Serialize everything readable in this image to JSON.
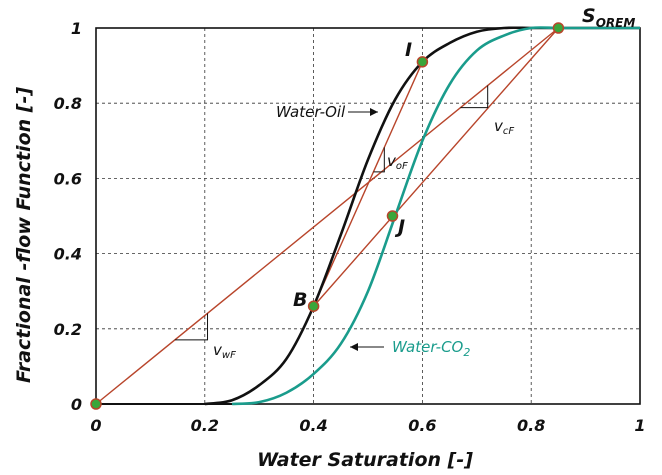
{
  "chart_data": {
    "type": "line",
    "xlabel": "Water Saturation [-]",
    "ylabel": "Fractional -flow Function [-]",
    "xlim": [
      0,
      1
    ],
    "ylim": [
      0,
      1
    ],
    "x_ticks": [
      "0",
      "0.2",
      "0.4",
      "0.6",
      "0.8",
      "1"
    ],
    "y_ticks": [
      "0",
      "0.2",
      "0.4",
      "0.6",
      "0.8",
      "1"
    ],
    "grid": true,
    "series": [
      {
        "name": "Water-Oil",
        "color": "#111111",
        "x": [
          0.2,
          0.25,
          0.3,
          0.35,
          0.4,
          0.45,
          0.5,
          0.55,
          0.6,
          0.65,
          0.7,
          0.75,
          0.8,
          0.85,
          0.9,
          0.95,
          1.0
        ],
        "y": [
          0.0,
          0.01,
          0.05,
          0.12,
          0.26,
          0.45,
          0.65,
          0.81,
          0.91,
          0.96,
          0.99,
          1.0,
          1.0,
          1.0,
          1.0,
          1.0,
          1.0
        ]
      },
      {
        "name": "Water-CO2",
        "color": "#1a9c8c",
        "x": [
          0.25,
          0.3,
          0.35,
          0.4,
          0.45,
          0.5,
          0.55,
          0.6,
          0.65,
          0.7,
          0.75,
          0.8,
          0.85,
          0.9,
          0.95,
          1.0
        ],
        "y": [
          0.0,
          0.005,
          0.03,
          0.08,
          0.16,
          0.3,
          0.5,
          0.7,
          0.85,
          0.94,
          0.98,
          1.0,
          1.0,
          1.0,
          1.0,
          1.0
        ]
      }
    ],
    "tangent_lines": [
      {
        "from": [
          0,
          0
        ],
        "to": [
          0.85,
          1.0
        ],
        "color": "#b8452b"
      },
      {
        "from": [
          0.4,
          0.26
        ],
        "to": [
          0.6,
          0.91
        ],
        "color": "#b8452b"
      },
      {
        "from": [
          0.4,
          0.26
        ],
        "to": [
          0.85,
          1.0
        ],
        "color": "#b8452b"
      }
    ],
    "points": [
      {
        "label": "",
        "x": 0.0,
        "y": 0.0
      },
      {
        "label": "B",
        "x": 0.4,
        "y": 0.26
      },
      {
        "label": "J",
        "x": 0.545,
        "y": 0.5
      },
      {
        "label": "I",
        "x": 0.6,
        "y": 0.91
      },
      {
        "label": "S",
        "sub": "OREM",
        "x": 0.85,
        "y": 1.0
      }
    ],
    "point_fill": "#3aa63a",
    "point_stroke": "#b8452b",
    "annotations": {
      "water_oil": "Water-Oil",
      "water_co2": "Water-CO",
      "water_co2_sub": "2",
      "v_wf": "v",
      "v_wf_sub": "wF",
      "v_of": "v",
      "v_of_sub": "oF",
      "v_cf": "v",
      "v_cf_sub": "cF"
    }
  }
}
